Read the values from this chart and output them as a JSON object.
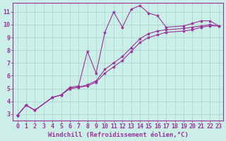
{
  "background_color": "#cceee8",
  "grid_color": "#aad8d0",
  "line_color": "#993399",
  "marker": "*",
  "xlim": [
    -0.5,
    23.5
  ],
  "ylim": [
    2.5,
    11.7
  ],
  "xticks": [
    0,
    1,
    2,
    3,
    4,
    5,
    6,
    7,
    8,
    9,
    10,
    11,
    12,
    13,
    14,
    15,
    16,
    17,
    18,
    19,
    20,
    21,
    22,
    23
  ],
  "yticks": [
    3,
    4,
    5,
    6,
    7,
    8,
    9,
    10,
    11
  ],
  "xlabel": "Windchill (Refroidissement éolien,°C)",
  "series": [
    {
      "x": [
        0,
        1,
        2,
        4,
        5,
        6,
        7,
        8,
        9,
        10,
        11,
        12,
        13,
        14,
        15,
        16,
        17,
        19,
        20,
        21,
        22,
        23
      ],
      "y": [
        2.9,
        3.7,
        3.3,
        4.3,
        4.5,
        5.1,
        5.2,
        7.9,
        6.2,
        9.4,
        11.0,
        9.8,
        11.2,
        11.5,
        10.9,
        10.7,
        9.8,
        9.9,
        10.1,
        10.3,
        10.3,
        9.9
      ]
    },
    {
      "x": [
        0,
        1,
        2,
        4,
        5,
        6,
        7,
        8,
        9,
        10,
        11,
        12,
        13,
        14,
        15,
        16,
        17,
        19,
        20,
        21,
        22,
        23
      ],
      "y": [
        2.9,
        3.7,
        3.3,
        4.3,
        4.5,
        5.0,
        5.1,
        5.2,
        5.5,
        6.2,
        6.7,
        7.2,
        7.9,
        8.6,
        9.0,
        9.2,
        9.4,
        9.5,
        9.6,
        9.8,
        9.9,
        9.9
      ]
    },
    {
      "x": [
        0,
        1,
        2,
        4,
        5,
        6,
        7,
        8,
        9,
        10,
        11,
        12,
        13,
        14,
        15,
        16,
        17,
        19,
        20,
        21,
        22,
        23
      ],
      "y": [
        2.9,
        3.7,
        3.3,
        4.3,
        4.5,
        5.0,
        5.1,
        5.3,
        5.6,
        6.5,
        7.0,
        7.5,
        8.2,
        8.9,
        9.3,
        9.5,
        9.6,
        9.7,
        9.8,
        9.9,
        10.0,
        9.9
      ]
    }
  ],
  "font_color": "#993399",
  "font_size_ticks": 6.0,
  "font_size_xlabel": 6.5
}
